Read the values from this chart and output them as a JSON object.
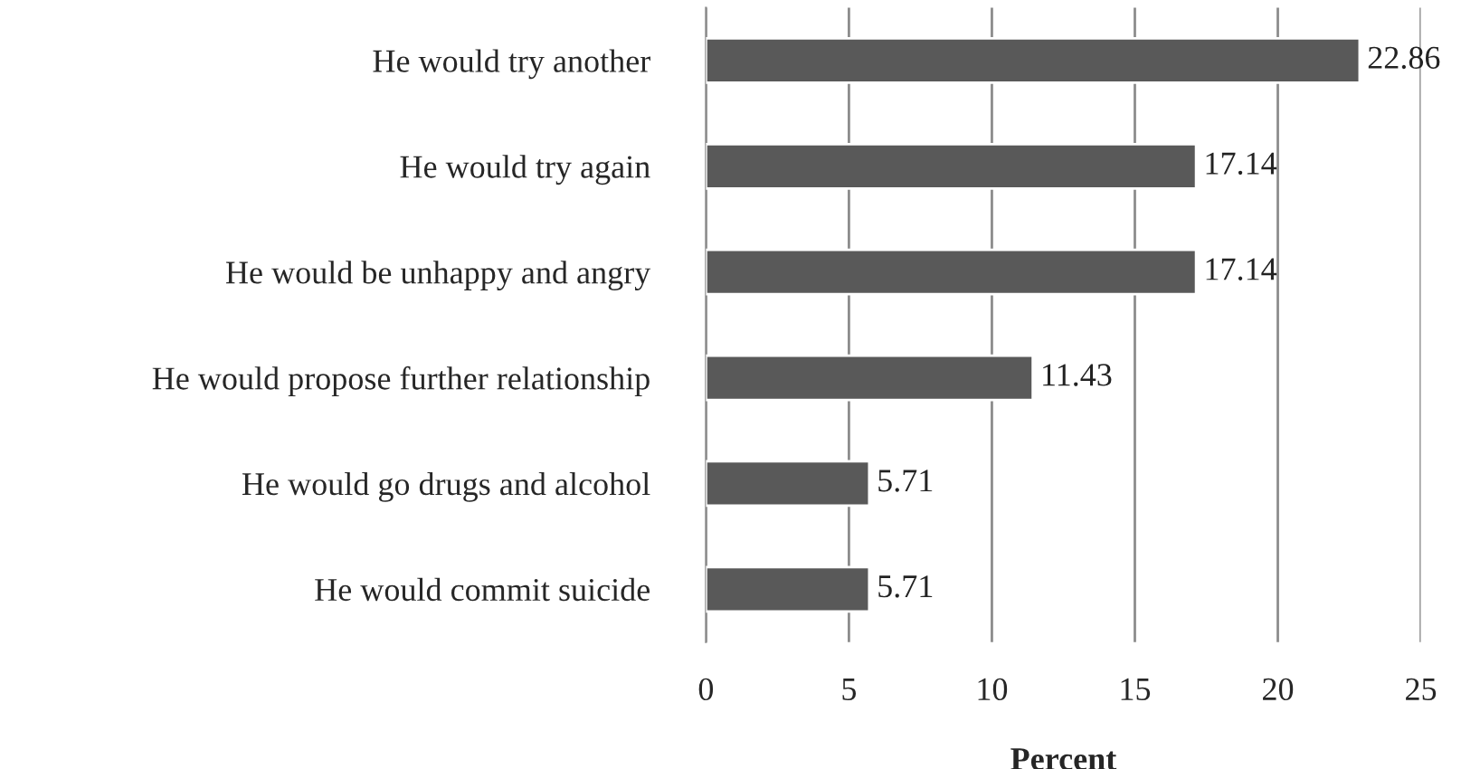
{
  "chart_data": {
    "type": "bar",
    "orientation": "horizontal",
    "xlabel": "Percent",
    "categories": [
      "He would try another",
      "He would try again",
      "He would be unhappy and angry",
      "He would propose further relationship",
      "He would go drugs and alcohol",
      "He would commit suicide"
    ],
    "values": [
      22.86,
      17.14,
      17.14,
      11.43,
      5.71,
      5.71
    ],
    "color": "#595959",
    "xlim": [
      0,
      25
    ],
    "xticks": [
      0,
      5,
      10,
      15,
      20,
      25
    ],
    "grid": "x",
    "data_labels": true
  }
}
